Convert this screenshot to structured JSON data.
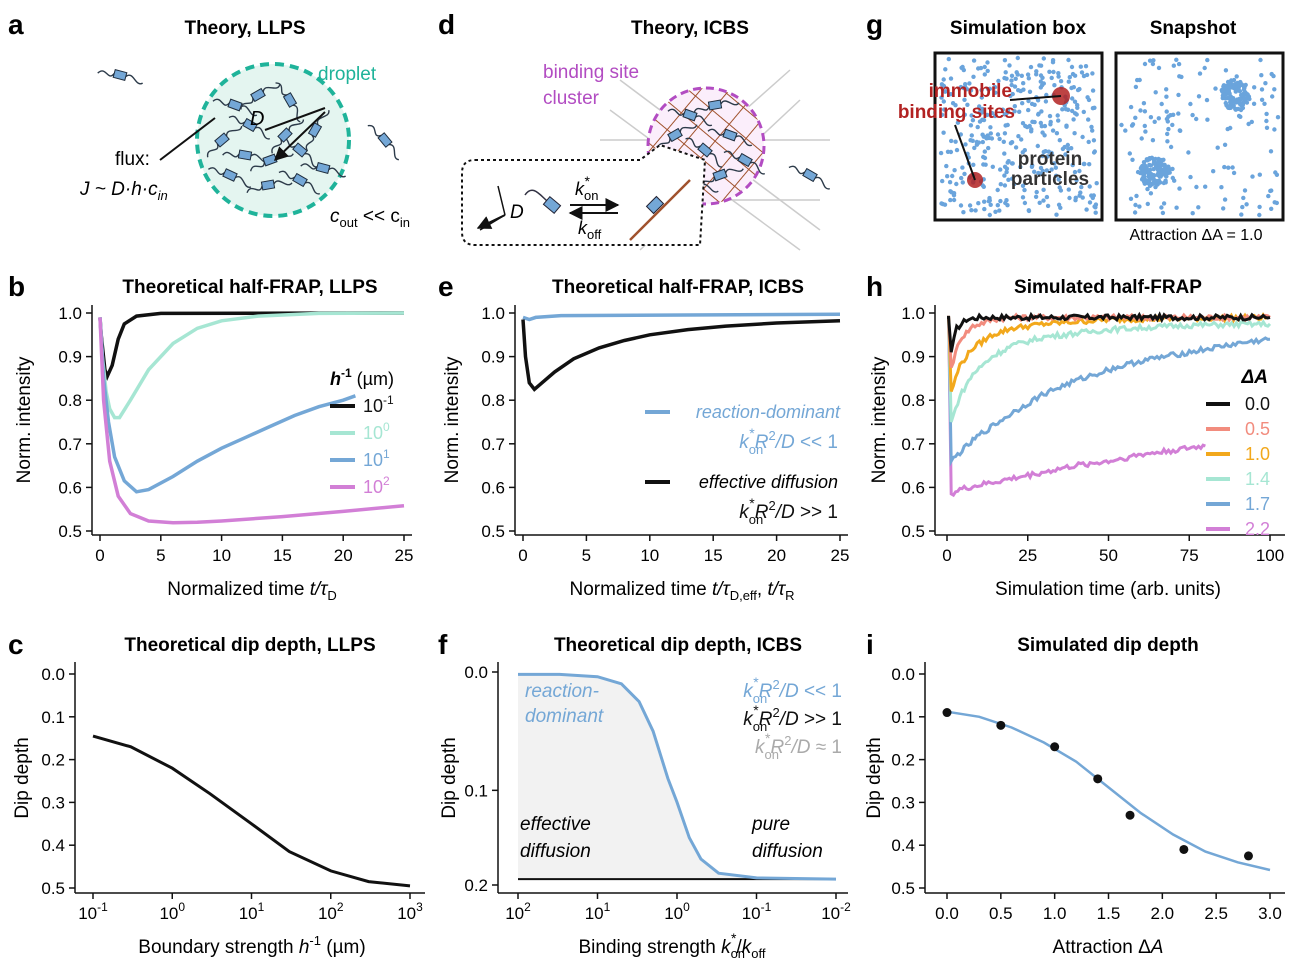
{
  "colors": {
    "black": "#111111",
    "teal": "#1fb39a",
    "teal_light": "#a6e6d3",
    "teal_fill": "#e4f5f0",
    "blue": "#74a7d6",
    "pink": "#d27fd6",
    "salmon": "#f28c7e",
    "orange": "#f2a81c",
    "purple": "#b24cc2",
    "brown": "#a0522d",
    "red": "#b22222",
    "grey": "#aaaaaa",
    "sim_dot": "#6aa4dc"
  },
  "panels": {
    "a": {
      "letter": "a",
      "title": "Theory, LLPS",
      "droplet": "droplet",
      "D": "D",
      "flux": "flux:",
      "flux_eq": "J ~ D·h·c",
      "flux_sub": "in",
      "cout": "c",
      "cout_sub": "out",
      "cout_rel": " << c",
      "cout_sub2": "in"
    },
    "d": {
      "letter": "d",
      "title": "Theory, ICBS",
      "bsc_line1": "binding site",
      "bsc_line2": "cluster",
      "kon": "k",
      "kon_sup": "*",
      "kon_sub": "on",
      "koff": "k",
      "koff_sub": "off",
      "D": "D"
    },
    "g": {
      "letter": "g",
      "title1": "Simulation box",
      "title2": "Snapshot",
      "label_immobile1": "immobile",
      "label_immobile2": "binding sites",
      "label_protein1": "protein",
      "label_protein2": "particles",
      "caption": "Attraction ΔA = 1.0"
    },
    "b": {
      "letter": "b",
      "title": "Theoretical half-FRAP, LLPS"
    },
    "e": {
      "letter": "e",
      "title": "Theoretical half-FRAP, ICBS"
    },
    "h": {
      "letter": "h",
      "title": "Simulated half-FRAP"
    },
    "c": {
      "letter": "c",
      "title": "Theoretical dip depth, LLPS"
    },
    "f": {
      "letter": "f",
      "title": "Theoretical dip depth, ICBS"
    },
    "i": {
      "letter": "i",
      "title": "Simulated dip depth"
    }
  },
  "chart_data": [
    {
      "id": "b",
      "type": "line",
      "title": "Theoretical half-FRAP, LLPS",
      "xlabel": "Normalized time t/τD",
      "ylabel": "Norm. intensity",
      "xlim": [
        0,
        25
      ],
      "ylim": [
        0.5,
        1.0
      ],
      "xticks": [
        0,
        5,
        10,
        15,
        20,
        25
      ],
      "yticks": [
        0.5,
        0.6,
        0.7,
        0.8,
        0.9,
        1.0
      ],
      "legend_title": "h-1 (µm)",
      "series": [
        {
          "name": "10^-1",
          "points": [
            [
              0,
              0.99
            ],
            [
              0.1,
              0.95
            ],
            [
              0.4,
              0.87
            ],
            [
              0.6,
              0.855
            ],
            [
              1.0,
              0.88
            ],
            [
              1.5,
              0.94
            ],
            [
              2,
              0.975
            ],
            [
              3,
              0.993
            ],
            [
              5,
              0.999
            ],
            [
              25,
              1.0
            ]
          ]
        },
        {
          "name": "10^0",
          "points": [
            [
              0,
              0.99
            ],
            [
              0.2,
              0.9
            ],
            [
              0.5,
              0.82
            ],
            [
              0.8,
              0.78
            ],
            [
              1.2,
              0.76
            ],
            [
              1.6,
              0.76
            ],
            [
              2.5,
              0.8
            ],
            [
              4,
              0.87
            ],
            [
              6,
              0.93
            ],
            [
              8,
              0.965
            ],
            [
              10,
              0.982
            ],
            [
              13,
              0.993
            ],
            [
              18,
              0.999
            ],
            [
              25,
              1.0
            ]
          ]
        },
        {
          "name": "10^1",
          "points": [
            [
              0,
              0.99
            ],
            [
              0.3,
              0.85
            ],
            [
              0.7,
              0.75
            ],
            [
              1.2,
              0.67
            ],
            [
              2,
              0.615
            ],
            [
              3,
              0.59
            ],
            [
              4,
              0.595
            ],
            [
              6,
              0.625
            ],
            [
              8,
              0.66
            ],
            [
              10,
              0.69
            ],
            [
              12,
              0.715
            ],
            [
              14,
              0.74
            ],
            [
              16,
              0.765
            ],
            [
              18,
              0.785
            ],
            [
              20,
              0.8
            ],
            [
              21,
              0.81
            ]
          ]
        },
        {
          "name": "10^2",
          "points": [
            [
              0,
              0.99
            ],
            [
              0.3,
              0.8
            ],
            [
              0.8,
              0.66
            ],
            [
              1.5,
              0.58
            ],
            [
              2.5,
              0.54
            ],
            [
              4,
              0.523
            ],
            [
              6,
              0.519
            ],
            [
              8,
              0.52
            ],
            [
              10,
              0.523
            ],
            [
              15,
              0.533
            ],
            [
              20,
              0.545
            ],
            [
              25,
              0.558
            ]
          ]
        }
      ]
    },
    {
      "id": "e",
      "type": "line",
      "title": "Theoretical half-FRAP, ICBS",
      "xlabel": "Normalized time t/τD,eff, t/τR",
      "ylabel": "Norm. intensity",
      "xlim": [
        0,
        25
      ],
      "ylim": [
        0.5,
        1.0
      ],
      "xticks": [
        0,
        5,
        10,
        15,
        20,
        25
      ],
      "yticks": [
        0.5,
        0.6,
        0.7,
        0.8,
        0.9,
        1.0
      ],
      "series": [
        {
          "name": "reaction-dominant",
          "points": [
            [
              0,
              0.99
            ],
            [
              0.5,
              0.985
            ],
            [
              1,
              0.99
            ],
            [
              3,
              0.994
            ],
            [
              25,
              0.997
            ]
          ]
        },
        {
          "name": "effective diffusion",
          "points": [
            [
              0,
              0.985
            ],
            [
              0.2,
              0.9
            ],
            [
              0.5,
              0.84
            ],
            [
              0.9,
              0.825
            ],
            [
              1.5,
              0.84
            ],
            [
              2.5,
              0.865
            ],
            [
              4,
              0.895
            ],
            [
              6,
              0.92
            ],
            [
              8,
              0.937
            ],
            [
              10,
              0.95
            ],
            [
              13,
              0.962
            ],
            [
              16,
              0.97
            ],
            [
              20,
              0.977
            ],
            [
              25,
              0.982
            ]
          ]
        }
      ],
      "legend": [
        "reaction-dominant",
        "k*onR2/D << 1",
        "effective diffusion",
        "k*onR2/D >> 1"
      ]
    },
    {
      "id": "h",
      "type": "line",
      "title": "Simulated half-FRAP",
      "xlabel": "Simulation time (arb. units)",
      "ylabel": "Norm. intensity",
      "xlim": [
        0,
        100
      ],
      "ylim": [
        0.5,
        1.0
      ],
      "xticks": [
        0,
        25,
        50,
        75,
        100
      ],
      "yticks": [
        0.5,
        0.6,
        0.7,
        0.8,
        0.9,
        1.0
      ],
      "legend_title": "ΔA",
      "series": [
        {
          "name": "0.0",
          "points": [
            [
              0,
              0.99
            ],
            [
              0.5,
              0.99
            ],
            [
              1.3,
              0.91
            ],
            [
              3,
              0.965
            ],
            [
              6,
              0.985
            ],
            [
              10,
              0.99
            ],
            [
              100,
              0.99
            ]
          ]
        },
        {
          "name": "0.5",
          "points": [
            [
              0,
              0.99
            ],
            [
              0.5,
              0.99
            ],
            [
              1.3,
              0.875
            ],
            [
              4,
              0.94
            ],
            [
              8,
              0.97
            ],
            [
              14,
              0.985
            ],
            [
              20,
              0.99
            ],
            [
              100,
              0.99
            ]
          ]
        },
        {
          "name": "1.0",
          "points": [
            [
              0,
              0.99
            ],
            [
              0.5,
              0.99
            ],
            [
              1.3,
              0.82
            ],
            [
              4,
              0.88
            ],
            [
              8,
              0.92
            ],
            [
              14,
              0.95
            ],
            [
              20,
              0.965
            ],
            [
              30,
              0.975
            ],
            [
              50,
              0.985
            ],
            [
              100,
              0.99
            ]
          ]
        },
        {
          "name": "1.4",
          "points": [
            [
              0,
              0.99
            ],
            [
              0.5,
              0.99
            ],
            [
              1.3,
              0.75
            ],
            [
              4,
              0.81
            ],
            [
              8,
              0.86
            ],
            [
              14,
              0.9
            ],
            [
              20,
              0.925
            ],
            [
              30,
              0.945
            ],
            [
              50,
              0.962
            ],
            [
              75,
              0.972
            ],
            [
              100,
              0.975
            ]
          ]
        },
        {
          "name": "1.7",
          "points": [
            [
              0,
              0.99
            ],
            [
              0.5,
              0.99
            ],
            [
              1.3,
              0.66
            ],
            [
              4,
              0.68
            ],
            [
              10,
              0.72
            ],
            [
              20,
              0.77
            ],
            [
              30,
              0.815
            ],
            [
              40,
              0.845
            ],
            [
              50,
              0.87
            ],
            [
              60,
              0.89
            ],
            [
              75,
              0.91
            ],
            [
              90,
              0.93
            ],
            [
              100,
              0.94
            ]
          ]
        },
        {
          "name": "2.2",
          "points": [
            [
              0,
              0.99
            ],
            [
              0.5,
              0.99
            ],
            [
              1.3,
              0.585
            ],
            [
              4,
              0.595
            ],
            [
              10,
              0.605
            ],
            [
              20,
              0.62
            ],
            [
              30,
              0.635
            ],
            [
              40,
              0.65
            ],
            [
              50,
              0.66
            ],
            [
              60,
              0.675
            ],
            [
              70,
              0.685
            ],
            [
              80,
              0.695
            ]
          ]
        }
      ]
    },
    {
      "id": "c",
      "type": "line",
      "title": "Theoretical dip depth, LLPS",
      "xlabel": "Boundary strength h-1 (µm)",
      "ylabel": "Dip depth",
      "xscale": "log",
      "xlim": [
        0.1,
        1000
      ],
      "ylim": [
        0.0,
        0.5
      ],
      "y_inverted": true,
      "yticks": [
        0.0,
        0.1,
        0.2,
        0.3,
        0.4,
        0.5
      ],
      "series": [
        {
          "name": "",
          "points": [
            [
              0.1,
              0.145
            ],
            [
              0.3,
              0.17
            ],
            [
              1,
              0.22
            ],
            [
              3,
              0.28
            ],
            [
              10,
              0.35
            ],
            [
              30,
              0.415
            ],
            [
              100,
              0.46
            ],
            [
              300,
              0.485
            ],
            [
              1000,
              0.495
            ]
          ]
        }
      ]
    },
    {
      "id": "f",
      "type": "line",
      "title": "Theoretical dip depth, ICBS",
      "xlabel": "Binding strength k*on/koff",
      "ylabel": "Dip depth",
      "xscale": "log",
      "x_reversed": true,
      "xlim": [
        100,
        0.01
      ],
      "ylim": [
        0.0,
        0.18
      ],
      "y_inverted": true,
      "yticks": [
        0.0,
        0.1
      ],
      "extra_ytick": 0.18,
      "series": [
        {
          "name": "k*onR2/D << 1",
          "points": [
            [
              100,
              0.002
            ],
            [
              30,
              0.002
            ],
            [
              10,
              0.004
            ],
            [
              5,
              0.01
            ],
            [
              3,
              0.025
            ],
            [
              2,
              0.05
            ],
            [
              1.3,
              0.09
            ],
            [
              1,
              0.11
            ],
            [
              0.7,
              0.14
            ],
            [
              0.5,
              0.158
            ],
            [
              0.3,
              0.17
            ],
            [
              0.1,
              0.174
            ],
            [
              0.01,
              0.175
            ]
          ]
        },
        {
          "name": "k*onR2/D >> 1",
          "points": [
            [
              100,
              0.175
            ],
            [
              0.01,
              0.175
            ]
          ]
        }
      ],
      "annotations": [
        "reaction-",
        "dominant",
        "effective",
        "diffusion",
        "pure",
        "diffusion",
        "k*onR2/D << 1",
        "k*onR2/D >> 1",
        "k*onR2/D ≈ 1"
      ]
    },
    {
      "id": "i",
      "type": "scatter",
      "title": "Simulated dip depth",
      "xlabel": "Attraction ΔA",
      "ylabel": "Dip depth",
      "xlim": [
        0.0,
        3.0
      ],
      "ylim": [
        0.0,
        0.5
      ],
      "y_inverted": true,
      "xticks": [
        0.0,
        0.5,
        1.0,
        1.5,
        2.0,
        2.5,
        3.0
      ],
      "yticks": [
        0.0,
        0.1,
        0.2,
        0.3,
        0.4,
        0.5
      ],
      "points": [
        [
          0.0,
          0.09
        ],
        [
          0.5,
          0.12
        ],
        [
          1.0,
          0.17
        ],
        [
          1.4,
          0.245
        ],
        [
          1.7,
          0.33
        ],
        [
          2.2,
          0.41
        ],
        [
          2.8,
          0.425
        ]
      ],
      "fit": [
        [
          0.0,
          0.088
        ],
        [
          0.3,
          0.1
        ],
        [
          0.6,
          0.125
        ],
        [
          0.9,
          0.16
        ],
        [
          1.2,
          0.205
        ],
        [
          1.5,
          0.265
        ],
        [
          1.8,
          0.325
        ],
        [
          2.1,
          0.375
        ],
        [
          2.4,
          0.415
        ],
        [
          2.7,
          0.44
        ],
        [
          3.0,
          0.458
        ]
      ]
    }
  ]
}
